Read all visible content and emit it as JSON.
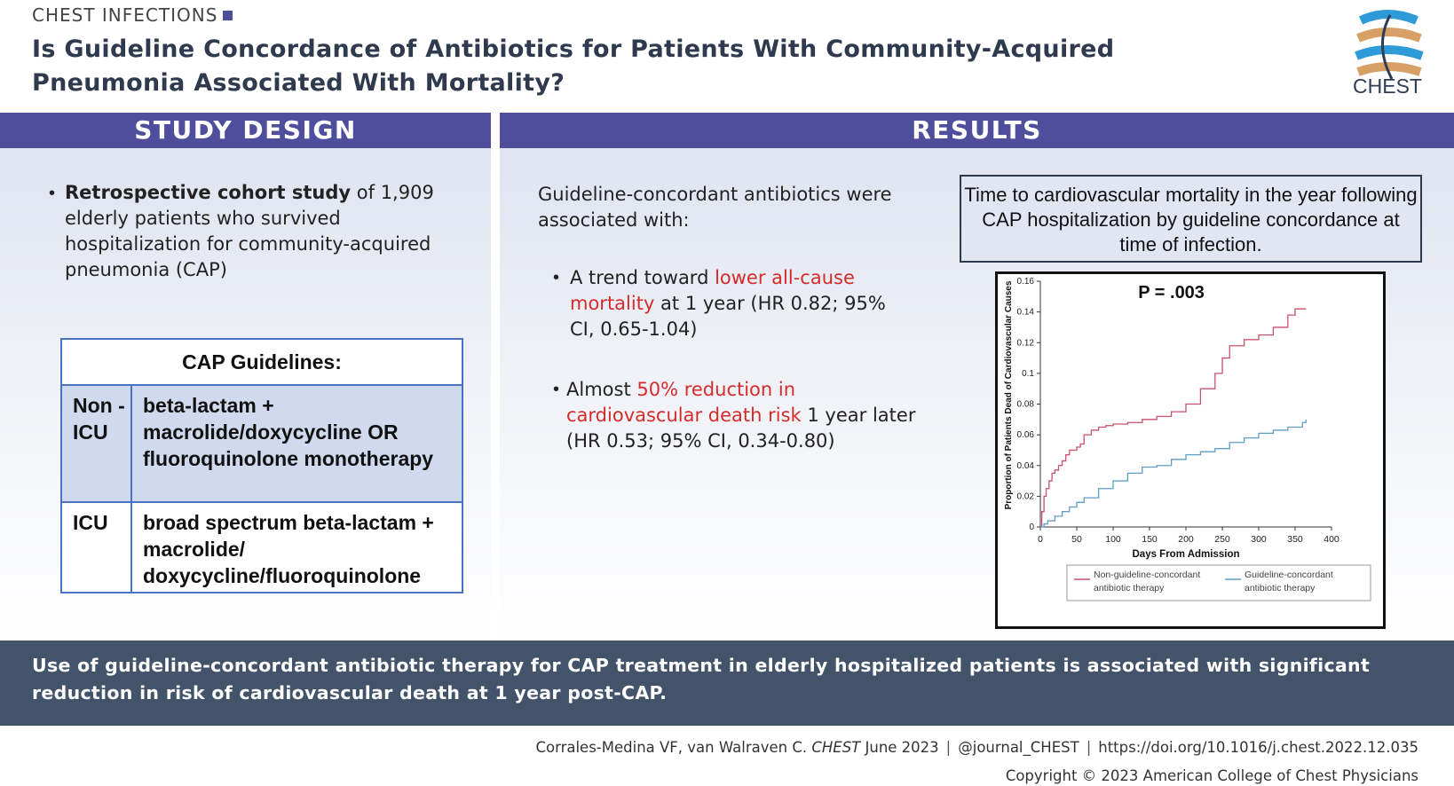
{
  "header": {
    "kicker": "CHEST INFECTIONS",
    "title": "Is Guideline Concordance of Antibiotics for Patients With Community-Acquired Pneumonia Associated With Mortality?",
    "logo_text": "CHEST"
  },
  "study_design": {
    "heading": "STUDY DESIGN",
    "bullet_bold": "Retrospective cohort study",
    "bullet_rest": " of 1,909 elderly patients who survived hospitalization for community-acquired pneumonia (CAP)"
  },
  "cap_table": {
    "heading": "CAP Guidelines:",
    "rows": [
      {
        "setting": "Non -ICU",
        "regimen": "beta-lactam + macrolide/doxycycline OR fluoroquinolone monotherapy"
      },
      {
        "setting": "ICU",
        "regimen": "broad spectrum beta-lactam + macrolide/ doxycycline/fluoroquinolone"
      }
    ]
  },
  "results": {
    "heading": "RESULTS",
    "intro": "Guideline-concordant antibiotics were associated with:",
    "bullet1_pre": "A trend toward ",
    "bullet1_red": "lower all-cause mortality",
    "bullet1_post": " at 1 year (HR 0.82; 95% CI, 0.65-1.04)",
    "bullet2_pre": "Almost ",
    "bullet2_red": "50% reduction in cardiovascular death risk",
    "bullet2_post": " 1 year later (HR 0.53; 95% CI, 0.34-0.80)",
    "chart_title": "Time to cardiovascular mortality in the year following CAP hospitalization by guideline concordance at time of infection."
  },
  "chart_data": {
    "type": "line",
    "title": "Time to cardiovascular mortality in the year following CAP hospitalization by guideline concordance at time of infection.",
    "annotation": "P = .003",
    "xlabel": "Days From Admission",
    "ylabel": "Proportion of Patients Dead of Cardiovascular Causes",
    "xlim": [
      0,
      400
    ],
    "ylim": [
      0,
      0.16
    ],
    "xticks": [
      "0",
      "50",
      "100",
      "150",
      "200",
      "250",
      "300",
      "350",
      "400"
    ],
    "yticks": [
      "0",
      "0.02",
      "0.04",
      "0.06",
      "0.08",
      "0.1",
      "0.12",
      "0.14",
      "0.16"
    ],
    "legend_position": "bottom",
    "series": [
      {
        "name": "Non-guideline-concordant antibiotic therapy",
        "color": "#c9506e",
        "x": [
          0,
          2,
          5,
          8,
          12,
          16,
          20,
          25,
          30,
          35,
          40,
          45,
          50,
          55,
          60,
          70,
          80,
          90,
          100,
          110,
          120,
          140,
          160,
          180,
          200,
          220,
          240,
          250,
          260,
          280,
          300,
          320,
          340,
          350,
          365
        ],
        "y": [
          0,
          0.01,
          0.02,
          0.025,
          0.03,
          0.035,
          0.037,
          0.04,
          0.043,
          0.047,
          0.05,
          0.05,
          0.052,
          0.054,
          0.06,
          0.063,
          0.065,
          0.066,
          0.067,
          0.067,
          0.068,
          0.07,
          0.072,
          0.075,
          0.08,
          0.09,
          0.1,
          0.11,
          0.118,
          0.122,
          0.125,
          0.13,
          0.138,
          0.142,
          0.142
        ]
      },
      {
        "name": "Guideline-concordant antibiotic therapy",
        "color": "#5f9ec6",
        "x": [
          0,
          5,
          10,
          20,
          30,
          40,
          50,
          60,
          80,
          100,
          120,
          140,
          160,
          180,
          200,
          220,
          240,
          260,
          280,
          300,
          320,
          340,
          360,
          365
        ],
        "y": [
          0,
          0.002,
          0.004,
          0.007,
          0.01,
          0.013,
          0.016,
          0.019,
          0.025,
          0.03,
          0.035,
          0.039,
          0.04,
          0.044,
          0.047,
          0.049,
          0.051,
          0.055,
          0.058,
          0.061,
          0.063,
          0.065,
          0.068,
          0.07
        ]
      }
    ]
  },
  "conclusion": "Use of guideline-concordant antibiotic therapy for CAP treatment in elderly hospitalized patients is associated with significant reduction in risk of cardiovascular death at 1 year post-CAP.",
  "footer": {
    "citation_authors": "Corrales-Medina VF, van Walraven C. ",
    "citation_journal": "CHEST",
    "citation_date": " June 2023",
    "separator": "|",
    "handle": "@journal_CHEST",
    "doi": "https://doi.org/10.1016/j.chest.2022.12.035",
    "copyright": "Copyright © 2023 American College of Chest Physicians"
  },
  "colors": {
    "band": "#4e4e9c",
    "conclusion_bg": "#43546a",
    "highlight_red": "#d62b2b",
    "table_border": "#4872c4"
  }
}
